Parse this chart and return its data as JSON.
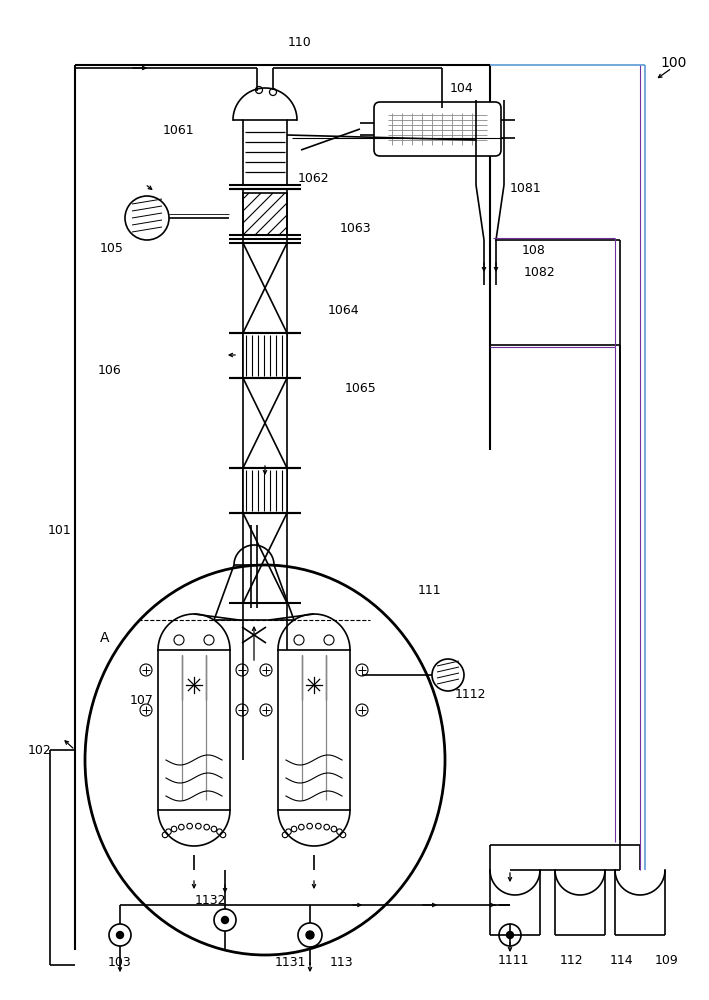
{
  "bg_color": "#ffffff",
  "line_color": "#000000",
  "gray_color": "#888888",
  "blue_color": "#5b9bd5",
  "purple_color": "#7030a0"
}
